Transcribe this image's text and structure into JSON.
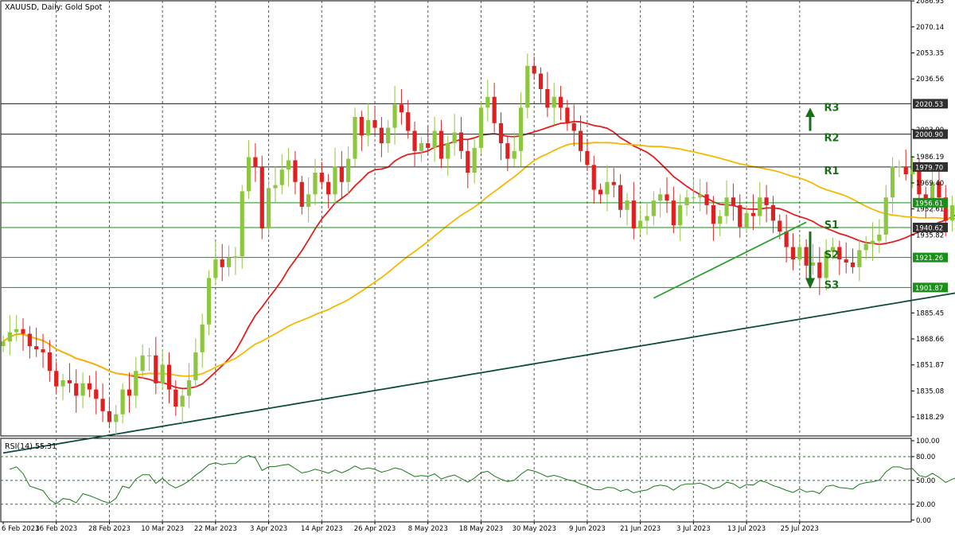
{
  "chart_data": {
    "type": "candlestick",
    "title": "XAUUSD, Daily:  Gold Spot",
    "colors": {
      "bull": "#8dc63f",
      "bear": "#e02020",
      "ma_fast": "#e02020",
      "ma_mid": "#f5b800",
      "ma_slow": "#0d4d3c",
      "level_line_resistance": "#202020",
      "level_line_support": "#1a8f1a",
      "level_label": "#1a6e1a",
      "trendline": "#2ea02e",
      "rsi": "#1a7a1a"
    },
    "y_axis": {
      "ylim": [
        1806.0,
        2087.0
      ],
      "ticks": [
        2086.93,
        2070.14,
        2053.35,
        2036.56,
        2003.9,
        1986.19,
        1969.4,
        1952.61,
        1935.82,
        1885.45,
        1868.66,
        1851.87,
        1835.08,
        1818.29
      ]
    },
    "price_tags": [
      {
        "value": 2020.53,
        "label": "2020.53",
        "style": "dark"
      },
      {
        "value": 2000.9,
        "label": "2000.90",
        "style": "dark"
      },
      {
        "value": 1979.7,
        "label": "1979.70",
        "style": "dark"
      },
      {
        "value": 1956.61,
        "label": "1956.61",
        "style": "green"
      },
      {
        "value": 1940.62,
        "label": "1940.62",
        "style": "dark"
      },
      {
        "value": 1921.26,
        "label": "1921.26",
        "style": "green"
      },
      {
        "value": 1901.87,
        "label": "1901.87",
        "style": "green"
      }
    ],
    "levels": [
      {
        "name": "R3",
        "value": 2020.53,
        "kind": "resistance"
      },
      {
        "name": "R2",
        "value": 2000.9,
        "kind": "resistance"
      },
      {
        "name": "R1",
        "value": 1979.7,
        "kind": "resistance"
      },
      {
        "name": "",
        "value": 1956.61,
        "kind": "support"
      },
      {
        "name": "S1",
        "value": 1940.62,
        "kind": "support"
      },
      {
        "name": "S2",
        "value": 1921.26,
        "kind": "support"
      },
      {
        "name": "S3",
        "value": 1901.87,
        "kind": "support"
      }
    ],
    "x_labels": [
      "6 Feb 2023",
      "16 Feb 2023",
      "28 Feb 2023",
      "10 Mar 2023",
      "22 Mar 2023",
      "3 Apr 2023",
      "14 Apr 2023",
      "26 Apr 2023",
      "8 May 2023",
      "18 May 2023",
      "30 May 2023",
      "9 Jun 2023",
      "21 Jun 2023",
      "3 Jul 2023",
      "13 Jul 2023",
      "25 Jul 2023"
    ],
    "x_label_bar_index": [
      0,
      8,
      16,
      24,
      32,
      40,
      48,
      56,
      64,
      72,
      80,
      88,
      96,
      104,
      112,
      120
    ],
    "candles_close": [
      1867,
      1873,
      1875,
      1872,
      1864,
      1862,
      1860,
      1848,
      1838,
      1842,
      1840,
      1832,
      1840,
      1836,
      1830,
      1822,
      1815,
      1820,
      1836,
      1832,
      1848,
      1858,
      1858,
      1840,
      1852,
      1836,
      1825,
      1832,
      1842,
      1860,
      1878,
      1908,
      1920,
      1915,
      1921,
      1922,
      1964,
      1986,
      1980,
      1940,
      1966,
      1968,
      1978,
      1984,
      1970,
      1954,
      1962,
      1976,
      1970,
      1962,
      1980,
      1970,
      1985,
      2012,
      2000,
      2010,
      2005,
      1995,
      2005,
      2020,
      2015,
      2003,
      1990,
      1995,
      1992,
      2003,
      1985,
      1995,
      2002,
      1990,
      1976,
      1992,
      2018,
      2025,
      2008,
      1995,
      1985,
      1990,
      2018,
      2045,
      2040,
      2030,
      2018,
      2025,
      2018,
      2008,
      2003,
      1990,
      1981,
      1965,
      1962,
      1970,
      1968,
      1952,
      1958,
      1940,
      1945,
      1948,
      1958,
      1962,
      1958,
      1942,
      1955,
      1960,
      1960,
      1962,
      1955,
      1943,
      1948,
      1960,
      1955,
      1941,
      1950,
      1948,
      1960,
      1955,
      1945,
      1938,
      1928,
      1920,
      1928,
      1916,
      1918,
      1908,
      1925,
      1928,
      1920,
      1918,
      1915,
      1926,
      1930,
      1932,
      1936,
      1960,
      1980,
      1980,
      1975,
      1978,
      1962,
      1958,
      1970,
      1960,
      1945,
      1955,
      1962,
      1958,
      1955,
      1945
    ],
    "rsi": {
      "label": "RSI(14) 55.31",
      "ylim": [
        0,
        100
      ],
      "ticks": [
        {
          "value": 100,
          "label": "100.00"
        },
        {
          "value": 80,
          "label": "80.00"
        },
        {
          "value": 50,
          "label": "50.00"
        },
        {
          "value": 20,
          "label": "20.00"
        },
        {
          "value": 0,
          "label": "0.00"
        }
      ],
      "dashed_levels": [
        80,
        50,
        20
      ]
    }
  }
}
